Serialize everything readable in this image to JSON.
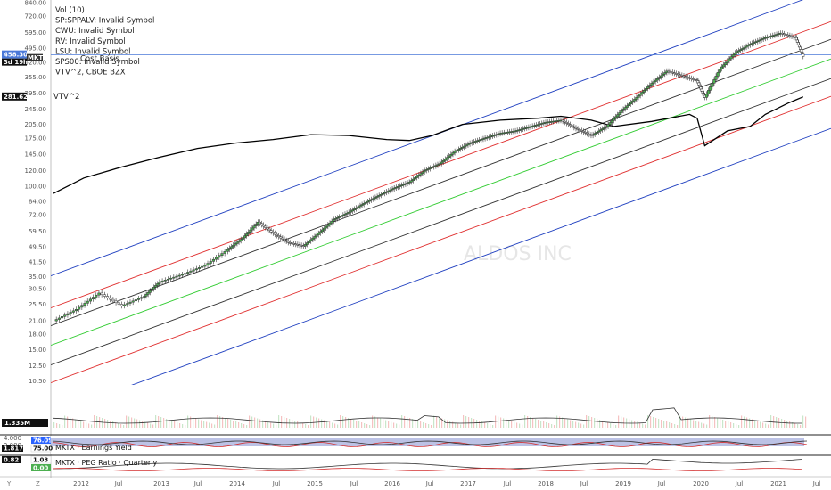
{
  "chart_data": {
    "type": "line",
    "log_scale": true,
    "grid": false,
    "ylim": [
      10,
      840
    ],
    "y_ticks": [
      "840.00",
      "720.00",
      "595.00",
      "495.00",
      "420.00",
      "355.00",
      "295.00",
      "245.00",
      "205.00",
      "175.00",
      "145.00",
      "120.00",
      "100.00",
      "84.00",
      "72.00",
      "59.50",
      "49.50",
      "41.50",
      "35.00",
      "30.50",
      "25.50",
      "21.00",
      "18.00",
      "15.00",
      "12.50",
      "10.50"
    ],
    "x_ticks": [
      "2012",
      "Jul",
      "2013",
      "Jul",
      "2014",
      "Jul",
      "2015",
      "Jul",
      "2016",
      "Jul",
      "2017",
      "Jul",
      "2018",
      "Jul",
      "2019",
      "Jul",
      "2020",
      "Jul",
      "2021",
      "Jul"
    ],
    "legend_lines": [
      "Vol (10)",
      "SP:SPPALV: Invalid Symbol",
      "CWU: Invalid Symbol",
      "RV: Invalid Symbol",
      "LSU: Invalid Symbol",
      "SPS00: Invalid Symbol",
      "VTV^2, CBOE BZX"
    ],
    "overlay_text": "Cost Basis",
    "watermark": "ALDOS INC",
    "price_series": {
      "name": "MKTX",
      "x": [
        2011.6,
        2011.9,
        2012.2,
        2012.5,
        2012.8,
        2013.0,
        2013.3,
        2013.6,
        2013.9,
        2014.1,
        2014.3,
        2014.5,
        2014.7,
        2014.9,
        2015.1,
        2015.3,
        2015.5,
        2015.7,
        2015.9,
        2016.1,
        2016.3,
        2016.5,
        2016.7,
        2016.9,
        2017.1,
        2017.3,
        2017.5,
        2017.7,
        2017.9,
        2018.1,
        2018.3,
        2018.5,
        2018.7,
        2018.9,
        2019.1,
        2019.3,
        2019.5,
        2019.7,
        2019.9,
        2020.1,
        2020.2,
        2020.4,
        2020.6,
        2020.8,
        2021.0,
        2021.2,
        2021.4,
        2021.5
      ],
      "y": [
        21,
        24,
        29,
        25,
        28,
        33,
        36,
        40,
        48,
        55,
        66,
        58,
        52,
        50,
        58,
        68,
        74,
        82,
        90,
        98,
        105,
        120,
        130,
        150,
        165,
        175,
        185,
        190,
        200,
        210,
        215,
        195,
        180,
        200,
        240,
        280,
        330,
        380,
        360,
        340,
        280,
        390,
        470,
        520,
        560,
        590,
        560,
        450
      ]
    },
    "vtv_series": {
      "name": "VTV^2",
      "x": [
        2011.6,
        2012.0,
        2012.5,
        2013.0,
        2013.5,
        2014.0,
        2014.5,
        2015.0,
        2015.5,
        2016.0,
        2016.3,
        2016.6,
        2017.0,
        2017.5,
        2018.0,
        2018.3,
        2018.7,
        2019.0,
        2019.5,
        2020.0,
        2020.1,
        2020.2,
        2020.5,
        2020.8,
        2021.0,
        2021.3,
        2021.5
      ],
      "y": [
        92,
        110,
        125,
        140,
        155,
        165,
        172,
        182,
        180,
        172,
        170,
        180,
        205,
        215,
        220,
        225,
        215,
        200,
        212,
        230,
        220,
        160,
        190,
        200,
        230,
        262,
        282
      ]
    },
    "price_label": "458.30",
    "price_sublabel": "3d 19h",
    "symbol_label": "MKTX",
    "vtv_label": "281.62",
    "vtv_tag": "VTV^2",
    "volume_label": "1.335M",
    "channels": [
      {
        "name": "center",
        "color": "#33cc33"
      },
      {
        "name": "inner",
        "color": "#333333"
      },
      {
        "name": "middle",
        "color": "#e03030"
      },
      {
        "name": "outer",
        "color": "#2040c0"
      }
    ],
    "cost_basis_color": "#4a78d8",
    "panes": [
      {
        "title": "MKTX · Earnings Yield",
        "ticks": [
          "4.000",
          "2.000"
        ],
        "labels": [
          "76.09",
          "75.00"
        ],
        "side_value": "1.817"
      },
      {
        "title": "MKTX · PEG Ratio · Quarterly",
        "ticks": [
          "1.03",
          "0.82"
        ],
        "labels": [
          "0.00"
        ]
      }
    ]
  },
  "corner": {
    "y": "Y",
    "z": "Z"
  }
}
